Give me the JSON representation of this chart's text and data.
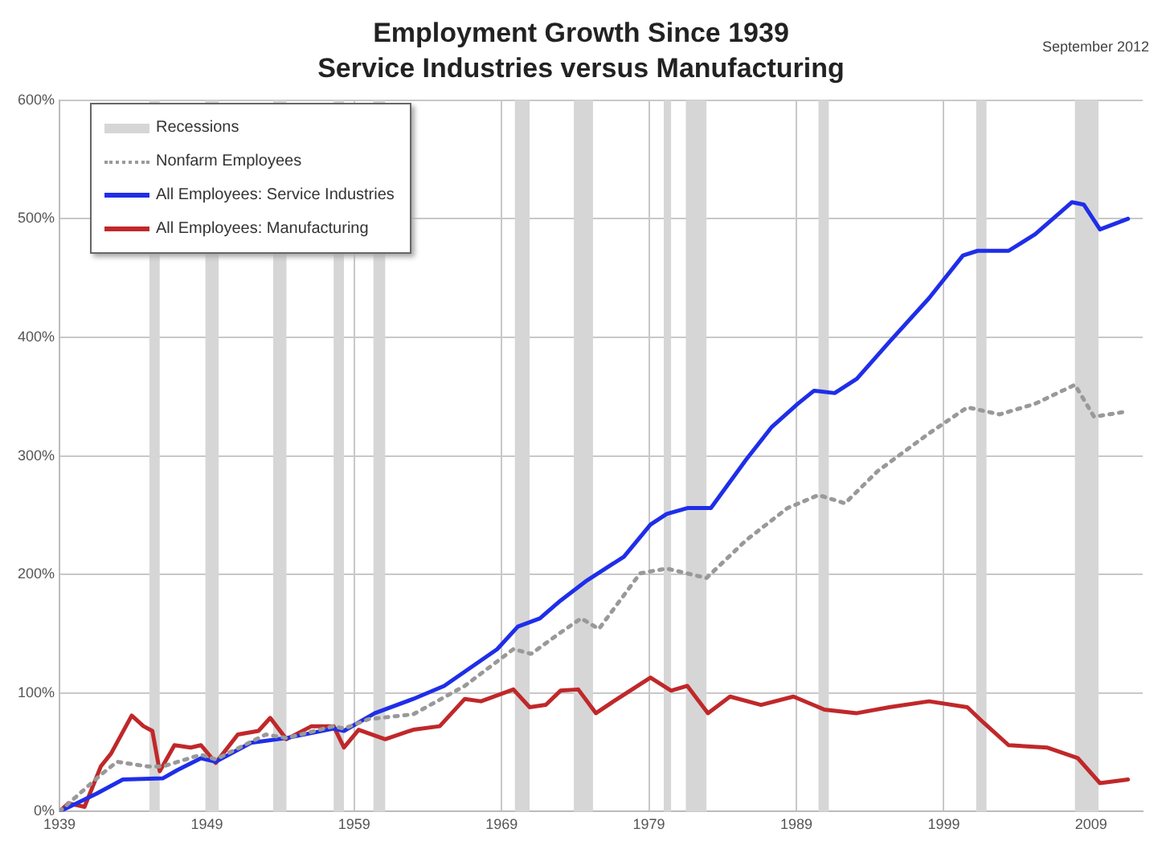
{
  "chart_data": {
    "type": "line",
    "title": "Employment Growth Since 1939",
    "subtitle": "Service Industries versus Manufacturing",
    "annotations": [
      "September 2012"
    ],
    "xlim": [
      1939,
      2012.5
    ],
    "xticks": [
      1939,
      1949,
      1959,
      1969,
      1979,
      1989,
      1999,
      2009
    ],
    "ylim": [
      0,
      600
    ],
    "yticks": [
      {
        "value": 0,
        "label": "0%"
      },
      {
        "value": 100,
        "label": "100%"
      },
      {
        "value": 200,
        "label": "200%"
      },
      {
        "value": 300,
        "label": "300%"
      },
      {
        "value": 400,
        "label": "400%"
      },
      {
        "value": 500,
        "label": "500%"
      },
      {
        "value": 600,
        "label": "600%"
      }
    ],
    "grid": true,
    "legend": "top left",
    "bands": [
      {
        "axis": "x",
        "from": 1945.1,
        "to": 1945.8,
        "label": "Recessions",
        "color": "#d6d6d6"
      },
      {
        "axis": "x",
        "from": 1948.9,
        "to": 1949.8,
        "color": "#d6d6d6"
      },
      {
        "axis": "x",
        "from": 1953.5,
        "to": 1954.4,
        "color": "#d6d6d6"
      },
      {
        "axis": "x",
        "from": 1957.6,
        "to": 1958.3,
        "color": "#d6d6d6"
      },
      {
        "axis": "x",
        "from": 1960.3,
        "to": 1961.1,
        "color": "#d6d6d6"
      },
      {
        "axis": "x",
        "from": 1969.9,
        "to": 1970.9,
        "color": "#d6d6d6"
      },
      {
        "axis": "x",
        "from": 1973.9,
        "to": 1975.2,
        "color": "#d6d6d6"
      },
      {
        "axis": "x",
        "from": 1980.0,
        "to": 1980.5,
        "color": "#d6d6d6"
      },
      {
        "axis": "x",
        "from": 1981.5,
        "to": 1982.9,
        "color": "#d6d6d6"
      },
      {
        "axis": "x",
        "from": 1990.5,
        "to": 1991.2,
        "color": "#d6d6d6"
      },
      {
        "axis": "x",
        "from": 2001.2,
        "to": 2001.9,
        "color": "#d6d6d6"
      },
      {
        "axis": "x",
        "from": 2007.9,
        "to": 2009.5,
        "color": "#d6d6d6"
      }
    ],
    "series": [
      {
        "name": "Nonfarm Employees",
        "color": "#999999",
        "line_style": "dotted",
        "x": [
          1939,
          1941.8,
          1942.9,
          1945,
          1946,
          1948.6,
          1949.6,
          1953,
          1954.4,
          1957.6,
          1958.3,
          1960,
          1963,
          1966.5,
          1969.8,
          1971,
          1973,
          1974.4,
          1975.6,
          1978.4,
          1980.2,
          1982.9,
          1985.6,
          1988.4,
          1990.5,
          1992.3,
          1994.5,
          1998,
          2000.6,
          2002.8,
          2005.2,
          2007.9,
          2009.2,
          2011.2
        ],
        "values": [
          0,
          31,
          42,
          38,
          38,
          48,
          44,
          65,
          62,
          72,
          70,
          78,
          82,
          106,
          137,
          133,
          151,
          163,
          154,
          201,
          205,
          197,
          229,
          256,
          267,
          260,
          287,
          319,
          341,
          335,
          344,
          360,
          333,
          337
        ]
      },
      {
        "name": "All Employees: Service Industries",
        "color": "#1f2ee8",
        "line_style": "solid",
        "x": [
          1939,
          1941.5,
          1943.3,
          1946,
          1947,
          1948.6,
          1949.6,
          1952,
          1954.4,
          1957.6,
          1958.3,
          1960.4,
          1963,
          1965.1,
          1968.7,
          1970.1,
          1971.6,
          1973,
          1974.8,
          1977.3,
          1979.1,
          1980.2,
          1981.6,
          1983.2,
          1985.6,
          1987.3,
          1989.1,
          1990.2,
          1991.6,
          1993.1,
          1995.3,
          1998,
          2000.3,
          2001.3,
          2003.4,
          2005.2,
          2007.7,
          2008.5,
          2009.6,
          2011.5
        ],
        "values": [
          0,
          15,
          27,
          28,
          35,
          45,
          42,
          58,
          62,
          70,
          68,
          83,
          95,
          106,
          137,
          156,
          163,
          178,
          195,
          215,
          242,
          251,
          256,
          256,
          297,
          324,
          344,
          355,
          353,
          365,
          396,
          433,
          469,
          473,
          473,
          487,
          514,
          512,
          491,
          500
        ]
      },
      {
        "name": "All Employees: Manufacturing",
        "color": "#c0282a",
        "line_style": "solid",
        "x": [
          1939,
          1939.6,
          1940.7,
          1941.8,
          1942.5,
          1943.9,
          1944.7,
          1945.3,
          1945.8,
          1946.8,
          1947.9,
          1948.6,
          1949.6,
          1951.1,
          1952.5,
          1953.3,
          1954.4,
          1956.1,
          1957.6,
          1958.3,
          1959.3,
          1961.1,
          1963,
          1964.8,
          1966.5,
          1967.6,
          1969.8,
          1970.9,
          1972,
          1973,
          1974.2,
          1975.4,
          1976.6,
          1979.1,
          1980.5,
          1981.6,
          1983,
          1984.5,
          1986.6,
          1988.8,
          1990.9,
          1993.1,
          1995.3,
          1998,
          2000.6,
          2001.7,
          2003.4,
          2006,
          2008.1,
          2009.6,
          2011.5
        ],
        "values": [
          0,
          7,
          4,
          38,
          49,
          81,
          72,
          68,
          34,
          56,
          54,
          56,
          41,
          65,
          68,
          79,
          61,
          72,
          72,
          54,
          69,
          61,
          69,
          72,
          95,
          93,
          103,
          88,
          90,
          102,
          103,
          83,
          93,
          113,
          102,
          106,
          83,
          97,
          90,
          97,
          86,
          83,
          88,
          93,
          88,
          75,
          56,
          54,
          45,
          24,
          27
        ]
      }
    ]
  }
}
